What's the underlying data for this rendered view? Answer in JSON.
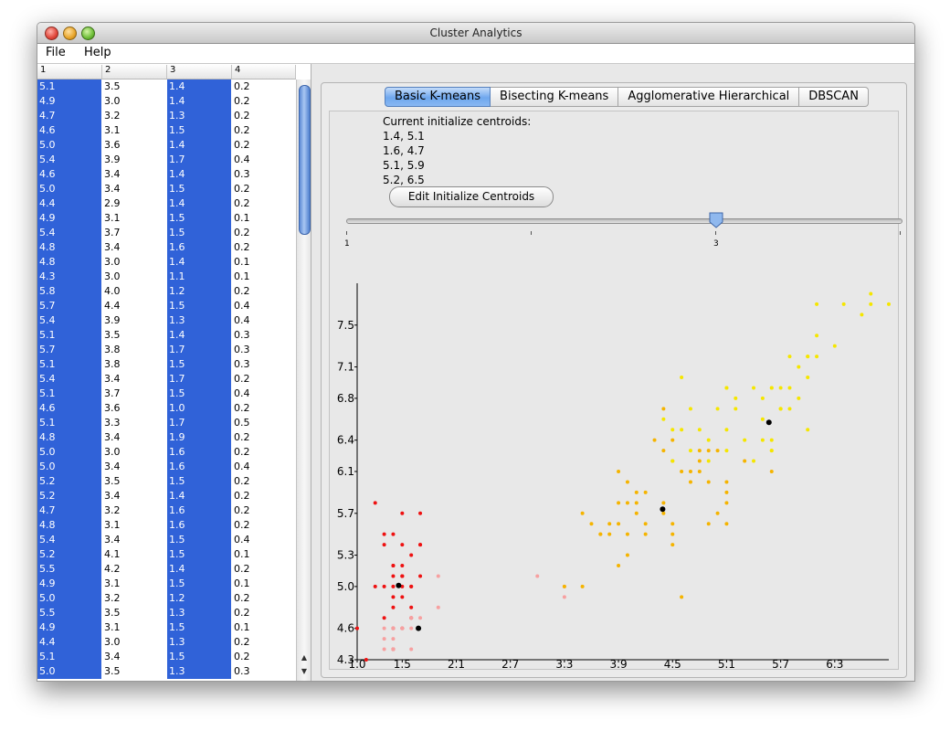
{
  "window": {
    "title": "Cluster Analytics"
  },
  "menu": {
    "items": [
      "File",
      "Help"
    ]
  },
  "table": {
    "headers": [
      "1",
      "2",
      "3",
      "4"
    ],
    "rows": [
      [
        "5.1",
        "3.5",
        "1.4",
        "0.2"
      ],
      [
        "4.9",
        "3.0",
        "1.4",
        "0.2"
      ],
      [
        "4.7",
        "3.2",
        "1.3",
        "0.2"
      ],
      [
        "4.6",
        "3.1",
        "1.5",
        "0.2"
      ],
      [
        "5.0",
        "3.6",
        "1.4",
        "0.2"
      ],
      [
        "5.4",
        "3.9",
        "1.7",
        "0.4"
      ],
      [
        "4.6",
        "3.4",
        "1.4",
        "0.3"
      ],
      [
        "5.0",
        "3.4",
        "1.5",
        "0.2"
      ],
      [
        "4.4",
        "2.9",
        "1.4",
        "0.2"
      ],
      [
        "4.9",
        "3.1",
        "1.5",
        "0.1"
      ],
      [
        "5.4",
        "3.7",
        "1.5",
        "0.2"
      ],
      [
        "4.8",
        "3.4",
        "1.6",
        "0.2"
      ],
      [
        "4.8",
        "3.0",
        "1.4",
        "0.1"
      ],
      [
        "4.3",
        "3.0",
        "1.1",
        "0.1"
      ],
      [
        "5.8",
        "4.0",
        "1.2",
        "0.2"
      ],
      [
        "5.7",
        "4.4",
        "1.5",
        "0.4"
      ],
      [
        "5.4",
        "3.9",
        "1.3",
        "0.4"
      ],
      [
        "5.1",
        "3.5",
        "1.4",
        "0.3"
      ],
      [
        "5.7",
        "3.8",
        "1.7",
        "0.3"
      ],
      [
        "5.1",
        "3.8",
        "1.5",
        "0.3"
      ],
      [
        "5.4",
        "3.4",
        "1.7",
        "0.2"
      ],
      [
        "5.1",
        "3.7",
        "1.5",
        "0.4"
      ],
      [
        "4.6",
        "3.6",
        "1.0",
        "0.2"
      ],
      [
        "5.1",
        "3.3",
        "1.7",
        "0.5"
      ],
      [
        "4.8",
        "3.4",
        "1.9",
        "0.2"
      ],
      [
        "5.0",
        "3.0",
        "1.6",
        "0.2"
      ],
      [
        "5.0",
        "3.4",
        "1.6",
        "0.4"
      ],
      [
        "5.2",
        "3.5",
        "1.5",
        "0.2"
      ],
      [
        "5.2",
        "3.4",
        "1.4",
        "0.2"
      ],
      [
        "4.7",
        "3.2",
        "1.6",
        "0.2"
      ],
      [
        "4.8",
        "3.1",
        "1.6",
        "0.2"
      ],
      [
        "5.4",
        "3.4",
        "1.5",
        "0.4"
      ],
      [
        "5.2",
        "4.1",
        "1.5",
        "0.1"
      ],
      [
        "5.5",
        "4.2",
        "1.4",
        "0.2"
      ],
      [
        "4.9",
        "3.1",
        "1.5",
        "0.1"
      ],
      [
        "5.0",
        "3.2",
        "1.2",
        "0.2"
      ],
      [
        "5.5",
        "3.5",
        "1.3",
        "0.2"
      ],
      [
        "4.9",
        "3.1",
        "1.5",
        "0.1"
      ],
      [
        "4.4",
        "3.0",
        "1.3",
        "0.2"
      ],
      [
        "5.1",
        "3.4",
        "1.5",
        "0.2"
      ],
      [
        "5.0",
        "3.5",
        "1.3",
        "0.3"
      ]
    ]
  },
  "tabs": [
    {
      "label": "Basic K-means",
      "active": true
    },
    {
      "label": "Bisecting K-means",
      "active": false
    },
    {
      "label": "Agglomerative Hierarchical",
      "active": false
    },
    {
      "label": "DBSCAN",
      "active": false
    }
  ],
  "centroids": {
    "label": "Current initialize centroids:",
    "lines": [
      "1.4, 5.1",
      "1.6, 4.7",
      "5.1, 5.9",
      "5.2, 6.5"
    ],
    "edit_button": "Edit Initialize Centroids"
  },
  "slider": {
    "min_label": "1",
    "value_label": "3",
    "value": 3,
    "min": 1,
    "max": 5
  },
  "chart_data": {
    "type": "scatter",
    "xlim": [
      1.0,
      6.9
    ],
    "ylim": [
      4.3,
      7.9
    ],
    "x_ticks": [
      "1.0",
      "1.5",
      "2.1",
      "2.7",
      "3.3",
      "3.9",
      "4.5",
      "5.1",
      "5.7",
      "6.3"
    ],
    "y_ticks": [
      "4.3",
      "4.6",
      "5.0",
      "5.3",
      "5.7",
      "6.1",
      "6.4",
      "6.8",
      "7.1",
      "7.5"
    ],
    "colors": {
      "red": "#ee1111",
      "pink": "#f7a0a0",
      "orange": "#f5b400",
      "yellow": "#f5e600",
      "centroid": "#000000"
    },
    "series": [
      {
        "color": "red",
        "points": [
          [
            1.4,
            5.1
          ],
          [
            1.4,
            4.9
          ],
          [
            1.3,
            4.7
          ],
          [
            1.5,
            4.6
          ],
          [
            1.4,
            5.0
          ],
          [
            1.7,
            5.4
          ],
          [
            1.4,
            4.6
          ],
          [
            1.5,
            5.0
          ],
          [
            1.4,
            4.4
          ],
          [
            1.5,
            4.9
          ],
          [
            1.5,
            5.4
          ],
          [
            1.6,
            4.8
          ],
          [
            1.4,
            4.8
          ],
          [
            1.1,
            4.3
          ],
          [
            1.2,
            5.8
          ],
          [
            1.5,
            5.7
          ],
          [
            1.3,
            5.4
          ],
          [
            1.7,
            5.7
          ],
          [
            1.5,
            5.1
          ],
          [
            1.7,
            5.4
          ],
          [
            1.5,
            5.1
          ],
          [
            1.0,
            4.6
          ],
          [
            1.7,
            5.1
          ],
          [
            1.6,
            5.0
          ],
          [
            1.6,
            5.0
          ],
          [
            1.5,
            5.2
          ],
          [
            1.4,
            5.2
          ],
          [
            1.6,
            4.7
          ],
          [
            1.4,
            5.5
          ],
          [
            1.2,
            5.0
          ],
          [
            1.3,
            5.5
          ],
          [
            1.5,
            5.1
          ],
          [
            1.3,
            5.0
          ],
          [
            1.4,
            5.2
          ],
          [
            1.6,
            5.3
          ]
        ]
      },
      {
        "color": "pink",
        "points": [
          [
            1.4,
            4.6
          ],
          [
            1.3,
            4.5
          ],
          [
            1.6,
            4.4
          ],
          [
            1.4,
            4.4
          ],
          [
            1.5,
            4.6
          ],
          [
            1.9,
            4.8
          ],
          [
            1.9,
            5.1
          ],
          [
            1.6,
            4.6
          ],
          [
            1.7,
            4.7
          ],
          [
            3.0,
            5.1
          ],
          [
            3.3,
            4.9
          ],
          [
            3.3,
            5.0
          ],
          [
            1.3,
            4.6
          ],
          [
            1.6,
            4.7
          ],
          [
            1.4,
            4.5
          ],
          [
            1.3,
            4.4
          ]
        ]
      },
      {
        "color": "orange",
        "points": [
          [
            3.5,
            5.0
          ],
          [
            3.6,
            5.6
          ],
          [
            3.5,
            5.7
          ],
          [
            3.9,
            5.2
          ],
          [
            3.7,
            5.5
          ],
          [
            3.8,
            5.5
          ],
          [
            4.0,
            5.5
          ],
          [
            4.1,
            5.8
          ],
          [
            3.9,
            6.1
          ],
          [
            4.0,
            6.0
          ],
          [
            4.1,
            5.7
          ],
          [
            4.2,
            5.6
          ],
          [
            4.4,
            5.7
          ],
          [
            4.5,
            5.5
          ],
          [
            4.4,
            6.3
          ],
          [
            4.5,
            6.2
          ],
          [
            4.7,
            6.1
          ],
          [
            4.8,
            6.2
          ],
          [
            4.9,
            6.3
          ],
          [
            4.5,
            5.4
          ],
          [
            4.2,
            5.9
          ],
          [
            4.0,
            5.8
          ],
          [
            4.6,
            6.1
          ],
          [
            4.5,
            5.6
          ],
          [
            4.6,
            4.9
          ],
          [
            4.3,
            6.4
          ],
          [
            4.7,
            6.0
          ],
          [
            4.9,
            6.0
          ],
          [
            4.8,
            6.1
          ],
          [
            5.0,
            6.3
          ],
          [
            5.1,
            6.0
          ],
          [
            5.1,
            5.8
          ],
          [
            5.0,
            5.7
          ],
          [
            4.9,
            5.6
          ],
          [
            5.1,
            5.9
          ],
          [
            4.0,
            5.3
          ],
          [
            4.5,
            6.4
          ],
          [
            4.4,
            5.8
          ],
          [
            4.2,
            5.5
          ],
          [
            4.1,
            5.9
          ],
          [
            3.9,
            5.6
          ],
          [
            5.3,
            6.2
          ],
          [
            5.6,
            6.1
          ],
          [
            5.1,
            5.6
          ],
          [
            3.8,
            5.6
          ],
          [
            3.7,
            5.5
          ],
          [
            3.3,
            5.0
          ],
          [
            3.9,
            5.8
          ],
          [
            4.4,
            6.7
          ],
          [
            4.8,
            6.3
          ]
        ]
      },
      {
        "color": "yellow",
        "points": [
          [
            6.0,
            7.2
          ],
          [
            6.1,
            7.2
          ],
          [
            6.4,
            7.7
          ],
          [
            6.7,
            7.7
          ],
          [
            6.9,
            7.7
          ],
          [
            6.6,
            7.6
          ],
          [
            6.7,
            7.8
          ],
          [
            6.3,
            7.3
          ],
          [
            5.8,
            7.2
          ],
          [
            6.1,
            7.4
          ],
          [
            5.6,
            6.9
          ],
          [
            5.7,
            6.9
          ],
          [
            5.8,
            6.7
          ],
          [
            5.9,
            7.1
          ],
          [
            6.0,
            6.5
          ],
          [
            5.6,
            6.3
          ],
          [
            5.7,
            6.7
          ],
          [
            5.5,
            6.4
          ],
          [
            5.4,
            6.9
          ],
          [
            5.1,
            6.9
          ],
          [
            5.2,
            6.7
          ],
          [
            5.3,
            6.4
          ],
          [
            5.5,
            6.8
          ],
          [
            5.0,
            6.7
          ],
          [
            5.1,
            6.5
          ],
          [
            4.9,
            6.4
          ],
          [
            4.8,
            6.5
          ],
          [
            4.7,
            6.7
          ],
          [
            4.6,
            6.5
          ],
          [
            4.5,
            6.2
          ],
          [
            4.4,
            6.6
          ],
          [
            4.6,
            7.0
          ],
          [
            4.7,
            6.3
          ],
          [
            4.5,
            6.5
          ],
          [
            5.2,
            6.8
          ],
          [
            5.6,
            6.9
          ],
          [
            5.8,
            6.9
          ],
          [
            6.1,
            7.7
          ],
          [
            5.9,
            6.8
          ],
          [
            5.4,
            6.2
          ],
          [
            5.6,
            6.4
          ],
          [
            5.1,
            6.3
          ],
          [
            4.9,
            6.2
          ],
          [
            5.1,
            6.9
          ],
          [
            5.7,
            6.7
          ],
          [
            5.5,
            6.6
          ],
          [
            6.0,
            7.2
          ],
          [
            5.7,
            6.7
          ],
          [
            6.0,
            7.0
          ],
          [
            5.6,
            6.3
          ]
        ]
      },
      {
        "color": "centroid",
        "points": [
          [
            1.46,
            5.01
          ],
          [
            1.68,
            4.6
          ],
          [
            4.39,
            5.74
          ],
          [
            5.57,
            6.57
          ]
        ]
      }
    ]
  }
}
